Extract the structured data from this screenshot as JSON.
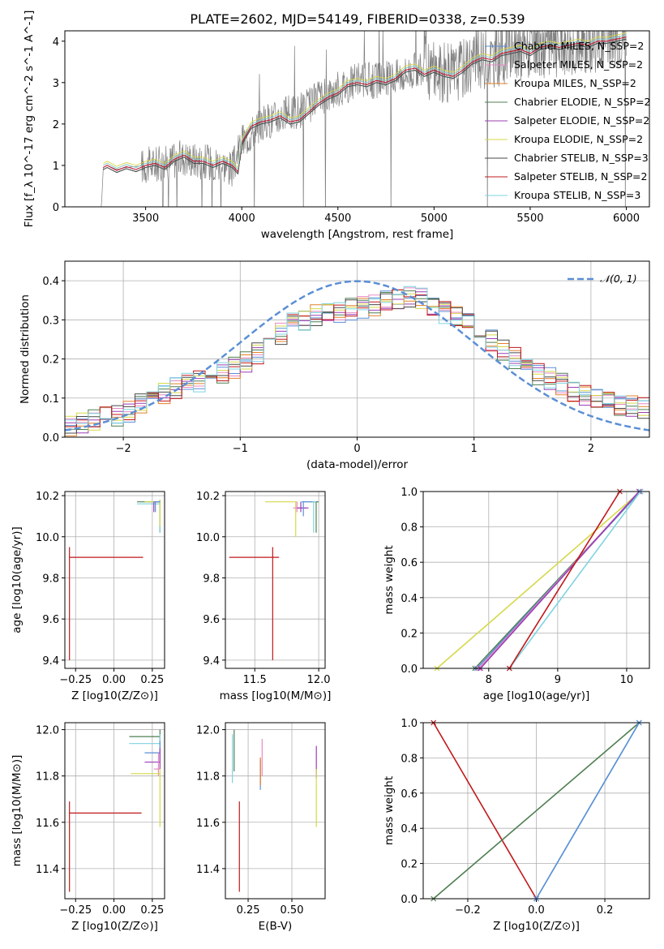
{
  "title": "PLATE=2602, MJD=54149, FIBERID=0338, z=0.539",
  "chart_data": [
    {
      "id": "spectrum",
      "type": "line",
      "xlabel": "wavelength [Angstrom, rest frame]",
      "ylabel": "Flux [f_λ 10^-17 erg cm^-2 s^-1 A^-1]",
      "xlim": [
        3080,
        6120
      ],
      "ylim": [
        0,
        4.25
      ],
      "xticks": [
        3500,
        4000,
        4500,
        5000,
        5500,
        6000
      ],
      "yticks": [
        0,
        1,
        2,
        3,
        4
      ],
      "grid": false,
      "legend_position": "top-right",
      "data_continuum_x": [
        3170,
        3270,
        3280,
        3300,
        3350,
        3400,
        3500,
        3600,
        3700,
        3800,
        3900,
        3950,
        4000,
        4100,
        4200,
        4300,
        4400,
        4500,
        4600,
        4700,
        4800,
        4900,
        5000,
        5100,
        5200,
        5300,
        5400,
        5500,
        5600,
        5700,
        5800,
        5900,
        6000
      ],
      "data_continuum_y": [
        0.0,
        0.0,
        0.95,
        1.0,
        0.9,
        0.95,
        1.0,
        1.05,
        1.2,
        1.1,
        1.05,
        0.9,
        1.55,
        2.0,
        2.2,
        2.3,
        2.6,
        2.85,
        3.05,
        3.05,
        3.15,
        3.3,
        3.3,
        3.2,
        3.55,
        3.6,
        3.75,
        3.8,
        3.85,
        3.9,
        3.95,
        4.05,
        4.1
      ],
      "series": [
        {
          "name": "Chabrier MILES, N_SSP=2",
          "color": "#5b8fd6"
        },
        {
          "name": "Salpeter MILES, N_SSP=2",
          "color": "#e78ac3"
        },
        {
          "name": "Kroupa MILES, N_SSP=2",
          "color": "#e2812b"
        },
        {
          "name": "Chabrier ELODIE, N_SSP=2",
          "color": "#4f7f52"
        },
        {
          "name": "Salpeter ELODIE, N_SSP=2",
          "color": "#9b3fb5"
        },
        {
          "name": "Kroupa ELODIE, N_SSP=2",
          "color": "#d6d84a"
        },
        {
          "name": "Chabrier STELIB, N_SSP=3",
          "color": "#4a4a4a"
        },
        {
          "name": "Salpeter STELIB, N_SSP=2",
          "color": "#c0181b"
        },
        {
          "name": "Kroupa STELIB, N_SSP=3",
          "color": "#7fd3e0"
        }
      ],
      "model_x": [
        3280,
        3300,
        3350,
        3400,
        3450,
        3500,
        3550,
        3600,
        3650,
        3700,
        3750,
        3800,
        3850,
        3900,
        3950,
        3980,
        4000,
        4050,
        4100,
        4150,
        4200,
        4250,
        4300,
        4350,
        4400,
        4450,
        4500,
        4550,
        4600,
        4650,
        4700,
        4750,
        4800,
        4850,
        4900,
        4950,
        5000,
        5050,
        5100,
        5150,
        5200,
        5250,
        5300,
        5350,
        5400,
        5450,
        5500,
        5550,
        5600,
        5650,
        5700,
        5750,
        5800,
        5850,
        5900,
        5950,
        6000
      ],
      "model_y": [
        0.95,
        1.0,
        0.88,
        0.97,
        0.9,
        1.0,
        1.05,
        0.95,
        1.15,
        1.25,
        1.1,
        1.1,
        1.0,
        1.1,
        1.0,
        0.85,
        1.55,
        1.95,
        2.05,
        2.1,
        2.2,
        2.05,
        2.1,
        2.3,
        2.5,
        2.65,
        2.75,
        2.95,
        3.0,
        2.95,
        3.05,
        3.0,
        3.1,
        3.3,
        3.35,
        3.2,
        3.3,
        3.2,
        3.15,
        3.3,
        3.5,
        3.6,
        3.55,
        3.7,
        3.75,
        3.8,
        3.7,
        3.85,
        3.9,
        3.85,
        3.9,
        3.95,
        3.9,
        4.0,
        4.0,
        4.05,
        4.1
      ]
    },
    {
      "id": "residuals",
      "type": "line",
      "xlabel": "(data-model)/error",
      "ylabel": "Normed distribution",
      "xlim": [
        -2.5,
        2.5
      ],
      "ylim": [
        0,
        0.45
      ],
      "xticks": [
        -2,
        -1,
        0,
        1,
        2
      ],
      "yticks": [
        0.0,
        0.1,
        0.2,
        0.3,
        0.4
      ],
      "grid": true,
      "legend_position": "top-right",
      "reference_curve": {
        "name": "𝒩(0, 1)",
        "mean": 0,
        "sigma": 1,
        "color": "#5b8fd6"
      },
      "histogram_bin_width": 0.1,
      "histogram_shape_x": [
        -2.5,
        -2.0,
        -1.5,
        -1.0,
        -0.5,
        0.0,
        0.5,
        1.0,
        1.5,
        2.0,
        2.5
      ],
      "histogram_shape_y": [
        0.03,
        0.06,
        0.13,
        0.18,
        0.3,
        0.33,
        0.36,
        0.28,
        0.17,
        0.1,
        0.07
      ]
    },
    {
      "id": "age_vs_Z",
      "type": "scatter",
      "xlabel": "Z [log10(Z/Z⊙)]",
      "ylabel": "age [log10(age/yr)]",
      "xlim": [
        -0.32,
        0.33
      ],
      "ylim": [
        9.36,
        10.22
      ],
      "xticks": [
        -0.25,
        0.0,
        0.25
      ],
      "xtick_labels": [
        "−0.25",
        "0.00",
        "0.25"
      ],
      "yticks": [
        9.4,
        9.6,
        9.8,
        10.0,
        10.2
      ],
      "grid": true,
      "errorbars": [
        {
          "color": "#c0181b",
          "x": [
            -0.29,
            0.19
          ],
          "y": [
            9.4,
            9.95
          ],
          "cx": -0.29,
          "cy": 9.9
        },
        {
          "color": "#4f7f52",
          "x": [
            0.15,
            0.3
          ],
          "y": [
            10.02,
            10.18
          ],
          "cx": 0.3,
          "cy": 10.17
        },
        {
          "color": "#7fd3e0",
          "x": [
            0.15,
            0.3
          ],
          "y": [
            10.02,
            10.17
          ],
          "cx": 0.3,
          "cy": 10.16
        },
        {
          "color": "#d6d84a",
          "x": [
            0.2,
            0.3
          ],
          "y": [
            10.05,
            10.18
          ],
          "cx": 0.3,
          "cy": 10.17
        },
        {
          "color": "#9b3fb5",
          "x": [
            0.26,
            0.3
          ],
          "y": [
            10.12,
            10.17
          ],
          "cx": 0.26,
          "cy": 10.17
        },
        {
          "color": "#5b8fd6",
          "x": [
            0.26,
            0.3
          ],
          "y": [
            10.12,
            10.17
          ],
          "cx": 0.27,
          "cy": 10.17
        }
      ]
    },
    {
      "id": "age_vs_mass",
      "type": "scatter",
      "xlabel": "mass [log10(M/M⊙)]",
      "ylabel": "",
      "xlim": [
        11.27,
        12.05
      ],
      "ylim": [
        9.36,
        10.22
      ],
      "xticks": [
        11.5,
        12.0
      ],
      "xtick_labels": [
        "11.5",
        "12.0"
      ],
      "yticks": [
        9.4,
        9.6,
        9.8,
        10.0,
        10.2
      ],
      "grid": true,
      "errorbars": [
        {
          "color": "#c0181b",
          "x": [
            11.3,
            11.69
          ],
          "y": [
            9.4,
            9.95
          ],
          "cx": 11.64,
          "cy": 9.9
        },
        {
          "color": "#d6d84a",
          "x": [
            11.58,
            11.83
          ],
          "y": [
            10.0,
            10.17
          ],
          "cx": 11.82,
          "cy": 10.17
        },
        {
          "color": "#4f7f52",
          "x": [
            11.94,
            12.0
          ],
          "y": [
            10.02,
            10.17
          ],
          "cx": 11.98,
          "cy": 10.17
        },
        {
          "color": "#7fd3e0",
          "x": [
            11.86,
            11.98
          ],
          "y": [
            10.02,
            10.17
          ],
          "cx": 11.96,
          "cy": 10.17
        },
        {
          "color": "#e78ac3",
          "x": [
            11.8,
            11.9
          ],
          "y": [
            10.12,
            10.17
          ],
          "cx": 11.83,
          "cy": 10.14
        },
        {
          "color": "#9b3fb5",
          "x": [
            11.83,
            11.92
          ],
          "y": [
            10.12,
            10.17
          ],
          "cx": 11.86,
          "cy": 10.14
        },
        {
          "color": "#5b8fd6",
          "x": [
            11.87,
            11.95
          ],
          "y": [
            10.1,
            10.17
          ],
          "cx": 11.88,
          "cy": 10.17
        }
      ]
    },
    {
      "id": "mass_weight_vs_age",
      "type": "line",
      "xlabel": "age [log10(age/yr)]",
      "ylabel": "mass weight",
      "xlim": [
        7.05,
        10.33
      ],
      "ylim": [
        0,
        1.0
      ],
      "xticks": [
        8,
        9,
        10
      ],
      "yticks": [
        0.0,
        0.2,
        0.4,
        0.6,
        0.8,
        1.0
      ],
      "grid": true,
      "lines": [
        {
          "color": "#d6d84a",
          "x": [
            7.25,
            10.2
          ],
          "y": [
            0.0,
            1.0
          ]
        },
        {
          "color": "#4f7f52",
          "x": [
            7.8,
            10.2
          ],
          "y": [
            0.0,
            1.0
          ]
        },
        {
          "color": "#5b8fd6",
          "x": [
            7.83,
            10.2
          ],
          "y": [
            0.0,
            1.0
          ]
        },
        {
          "color": "#e78ac3",
          "x": [
            7.86,
            10.18
          ],
          "y": [
            0.0,
            1.0
          ]
        },
        {
          "color": "#9b3fb5",
          "x": [
            7.88,
            10.18
          ],
          "y": [
            0.0,
            1.0
          ]
        },
        {
          "color": "#7fd3e0",
          "x": [
            8.3,
            10.2
          ],
          "y": [
            0.0,
            1.0
          ]
        },
        {
          "color": "#c0181b",
          "x": [
            8.3,
            9.9
          ],
          "y": [
            0.0,
            1.0
          ]
        }
      ]
    },
    {
      "id": "mass_vs_Z",
      "type": "scatter",
      "xlabel": "Z [log10(Z/Z⊙)]",
      "ylabel": "mass [log10(M/M⊙)]",
      "xlim": [
        -0.32,
        0.33
      ],
      "ylim": [
        11.27,
        12.03
      ],
      "xticks": [
        -0.25,
        0.0,
        0.25
      ],
      "xtick_labels": [
        "−0.25",
        "0.00",
        "0.25"
      ],
      "yticks": [
        11.4,
        11.6,
        11.8,
        12.0
      ],
      "grid": true,
      "errorbars": [
        {
          "color": "#c0181b",
          "x": [
            -0.29,
            0.18
          ],
          "y": [
            11.3,
            11.69
          ],
          "cx": -0.29,
          "cy": 11.64
        },
        {
          "color": "#4f7f52",
          "x": [
            0.1,
            0.3
          ],
          "y": [
            11.94,
            12.0
          ],
          "cx": 0.3,
          "cy": 11.97
        },
        {
          "color": "#7fd3e0",
          "x": [
            0.1,
            0.3
          ],
          "y": [
            11.86,
            11.98
          ],
          "cx": 0.3,
          "cy": 11.94
        },
        {
          "color": "#5b8fd6",
          "x": [
            0.2,
            0.3
          ],
          "y": [
            11.87,
            11.95
          ],
          "cx": 0.3,
          "cy": 11.9
        },
        {
          "color": "#9b3fb5",
          "x": [
            0.2,
            0.3
          ],
          "y": [
            11.83,
            11.92
          ],
          "cx": 0.3,
          "cy": 11.86
        },
        {
          "color": "#e78ac3",
          "x": [
            0.26,
            0.3
          ],
          "y": [
            11.8,
            11.9
          ],
          "cx": 0.29,
          "cy": 11.83
        },
        {
          "color": "#d6d84a",
          "x": [
            0.11,
            0.3
          ],
          "y": [
            11.58,
            11.83
          ],
          "cx": 0.3,
          "cy": 11.81
        }
      ]
    },
    {
      "id": "mass_vs_ebv",
      "type": "scatter",
      "xlabel": "E(B-V)",
      "ylabel": "",
      "xlim": [
        0.12,
        0.69
      ],
      "ylim": [
        11.27,
        12.03
      ],
      "xticks": [
        0.25,
        0.5
      ],
      "xtick_labels": [
        "0.25",
        "0.50"
      ],
      "yticks": [
        11.4,
        11.6,
        11.8,
        12.0
      ],
      "grid": true,
      "errorbars": [
        {
          "color": "#c0181b",
          "x": [
            0.2,
            0.2
          ],
          "y": [
            11.3,
            11.69
          ],
          "cx": 0.2,
          "cy": 11.64
        },
        {
          "color": "#4f7f52",
          "x": [
            0.17,
            0.17
          ],
          "y": [
            11.82,
            12.0
          ],
          "cx": 0.17,
          "cy": 11.95
        },
        {
          "color": "#7fd3e0",
          "x": [
            0.16,
            0.16
          ],
          "y": [
            11.77,
            11.98
          ],
          "cx": 0.16,
          "cy": 11.9
        },
        {
          "color": "#5b8fd6",
          "x": [
            0.32,
            0.32
          ],
          "y": [
            11.74,
            11.87
          ],
          "cx": 0.32,
          "cy": 11.8
        },
        {
          "color": "#e78ac3",
          "x": [
            0.33,
            0.33
          ],
          "y": [
            11.8,
            11.96
          ],
          "cx": 0.33,
          "cy": 11.88
        },
        {
          "color": "#e2812b",
          "x": [
            0.32,
            0.32
          ],
          "y": [
            11.76,
            11.88
          ],
          "cx": 0.32,
          "cy": 11.82
        },
        {
          "color": "#9b3fb5",
          "x": [
            0.64,
            0.64
          ],
          "y": [
            11.79,
            11.93
          ],
          "cx": 0.64,
          "cy": 11.86
        },
        {
          "color": "#d6d84a",
          "x": [
            0.64,
            0.64
          ],
          "y": [
            11.58,
            11.83
          ],
          "cx": 0.64,
          "cy": 11.7
        }
      ]
    },
    {
      "id": "mass_weight_vs_Z",
      "type": "line",
      "xlabel": "Z [log10(Z/Z⊙)]",
      "ylabel": "mass weight",
      "xlim": [
        -0.33,
        0.33
      ],
      "ylim": [
        0,
        1.0
      ],
      "xticks": [
        -0.2,
        0.0,
        0.2
      ],
      "xtick_labels": [
        "−0.2",
        "0.0",
        "0.2"
      ],
      "yticks": [
        0.0,
        0.2,
        0.4,
        0.6,
        0.8,
        1.0
      ],
      "grid": true,
      "lines": [
        {
          "color": "#c0181b",
          "x": [
            -0.3,
            0.0
          ],
          "y": [
            1.0,
            0.0
          ]
        },
        {
          "color": "#4f7f52",
          "x": [
            -0.3,
            0.3
          ],
          "y": [
            0.0,
            1.0
          ]
        },
        {
          "color": "#7fd3e0",
          "x": [
            0.0,
            0.3
          ],
          "y": [
            0.0,
            1.0
          ]
        },
        {
          "color": "#5b8fd6",
          "x": [
            0.0,
            0.3
          ],
          "y": [
            0.0,
            1.0
          ]
        }
      ]
    }
  ]
}
